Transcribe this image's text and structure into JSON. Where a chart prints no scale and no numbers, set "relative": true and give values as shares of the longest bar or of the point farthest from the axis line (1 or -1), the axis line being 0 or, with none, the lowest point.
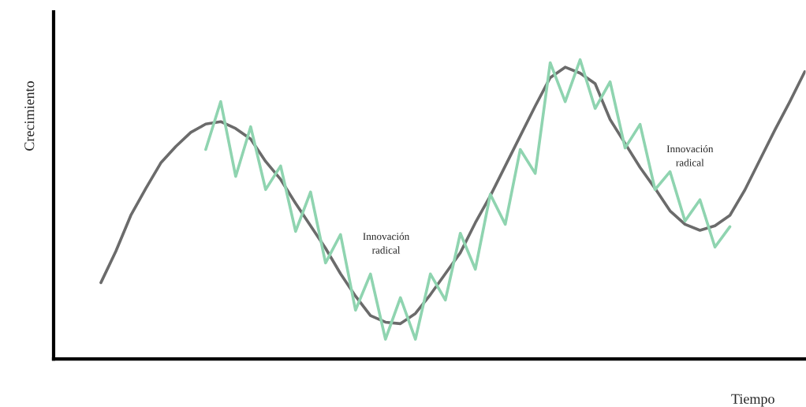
{
  "chart_data": {
    "type": "line",
    "relative": true,
    "xlabel": "Tiempo",
    "ylabel": "Crecimiento",
    "marker": "none",
    "line_style": "solid",
    "annotations": [
      "Innovación\nradical",
      "Innovación\nradical"
    ],
    "categories": [
      null,
      null,
      null,
      null,
      null,
      null,
      null,
      null,
      null,
      null,
      null,
      null,
      null,
      null,
      null,
      null,
      null,
      null,
      null,
      null,
      null,
      null,
      null,
      null,
      null,
      null,
      null,
      null,
      null,
      null,
      null,
      null,
      null,
      null,
      null,
      null,
      null,
      null,
      null,
      null,
      null,
      null,
      null,
      null,
      null,
      null,
      null,
      null
    ],
    "series": [
      {
        "color": "#6b6b6b",
        "values": [
          0.255,
          0.36,
          0.48,
          0.57,
          0.655,
          0.71,
          0.757,
          0.785,
          0.793,
          0.77,
          0.735,
          0.66,
          0.6,
          0.52,
          0.445,
          0.37,
          0.285,
          0.21,
          0.145,
          0.123,
          0.118,
          0.152,
          0.215,
          0.285,
          0.355,
          0.455,
          0.545,
          0.645,
          0.745,
          0.845,
          0.94,
          0.975,
          0.955,
          0.92,
          0.8,
          0.72,
          0.64,
          0.57,
          0.495,
          0.45,
          0.43,
          0.445,
          0.48,
          0.565,
          0.665,
          0.765,
          0.86,
          0.96
        ]
      },
      {
        "color": "#8fd4b0",
        "values": [
          null,
          null,
          null,
          null,
          null,
          null,
          null,
          0.7,
          0.86,
          0.61,
          0.776,
          0.566,
          0.645,
          0.426,
          0.558,
          0.321,
          0.416,
          0.163,
          0.284,
          0.066,
          0.205,
          0.066,
          0.284,
          0.197,
          0.42,
          0.3,
          0.55,
          0.45,
          0.7,
          0.62,
          0.99,
          0.86,
          1.0,
          0.837,
          0.926,
          0.705,
          0.784,
          0.566,
          0.626,
          0.461,
          0.532,
          0.374,
          0.442,
          null,
          null,
          null,
          null,
          null
        ]
      }
    ]
  }
}
